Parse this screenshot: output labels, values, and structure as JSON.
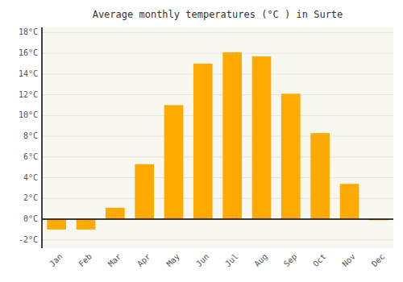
{
  "chart_data": {
    "type": "bar",
    "title": "Average monthly temperatures (°C ) in Surte",
    "categories": [
      "Jan",
      "Feb",
      "Mar",
      "Apr",
      "May",
      "Jun",
      "Jul",
      "Aug",
      "Sep",
      "Oct",
      "Nov",
      "Dec"
    ],
    "values": [
      -1.0,
      -1.0,
      1.1,
      5.3,
      11.0,
      15.0,
      16.1,
      15.7,
      12.1,
      8.3,
      3.4,
      -0.1
    ],
    "color": "#FFAA00",
    "ylim": [
      -2.8,
      18.5
    ],
    "yticks": [
      {
        "value": -2,
        "label": "-2°C"
      },
      {
        "value": 0,
        "label": "0°C"
      },
      {
        "value": 2,
        "label": "2°C"
      },
      {
        "value": 4,
        "label": "4°C"
      },
      {
        "value": 6,
        "label": "6°C"
      },
      {
        "value": 8,
        "label": "8°C"
      },
      {
        "value": 10,
        "label": "10°C"
      },
      {
        "value": 12,
        "label": "12°C"
      },
      {
        "value": 14,
        "label": "14°C"
      },
      {
        "value": 16,
        "label": "16°C"
      },
      {
        "value": 18,
        "label": "18°C"
      }
    ],
    "grid": true
  }
}
